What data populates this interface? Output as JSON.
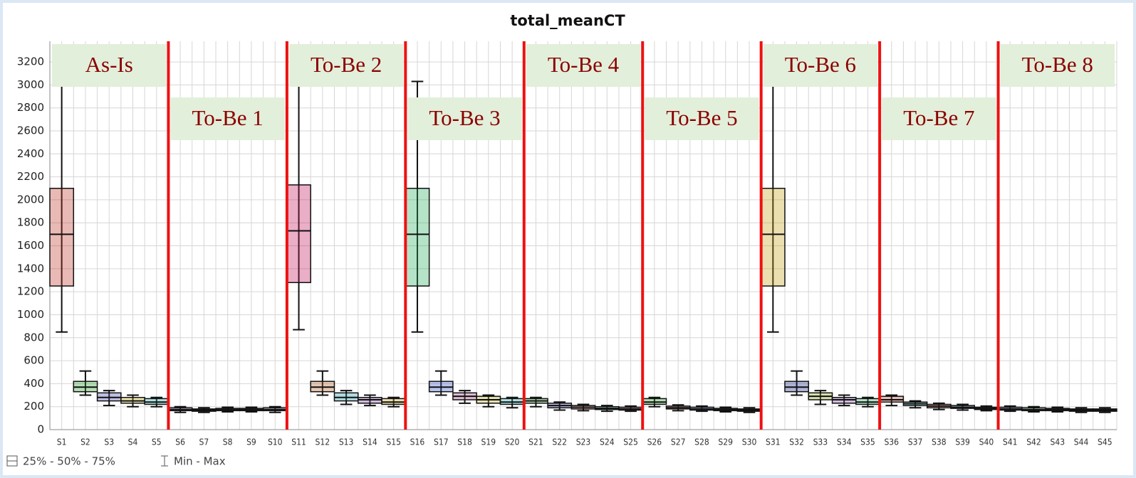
{
  "chart_data": {
    "type": "box",
    "title": "total_meanCT",
    "categories": [
      "S1",
      "S2",
      "S3",
      "S4",
      "S5",
      "S6",
      "S7",
      "S8",
      "S9",
      "S10",
      "S11",
      "S12",
      "S13",
      "S14",
      "S15",
      "S16",
      "S17",
      "S18",
      "S19",
      "S20",
      "S21",
      "S22",
      "S23",
      "S24",
      "S25",
      "S26",
      "S27",
      "S28",
      "S29",
      "S30",
      "S31",
      "S32",
      "S33",
      "S34",
      "S35",
      "S36",
      "S37",
      "S38",
      "S39",
      "S40",
      "S41",
      "S42",
      "S43",
      "S44",
      "S45"
    ],
    "colors": [
      "#c0392b",
      "#2ca02c",
      "#4b4bb5",
      "#c9b21a",
      "#1fa8a8",
      "#8e44ad",
      "#e67e22",
      "#3a7bd5",
      "#27ae60",
      "#9b59b6",
      "#c2185b",
      "#b5652b",
      "#1f9aa8",
      "#7b3fa0",
      "#c9a21a",
      "#27ae60",
      "#3a55c9",
      "#a0407a",
      "#b5a51a",
      "#1fa8a8",
      "#2ca02c",
      "#4b4bb5",
      "#c0392b",
      "#1fa8a8",
      "#c2185b",
      "#2ca02c",
      "#c0392b",
      "#3a7bd5",
      "#c0392b",
      "#3a55c9",
      "#c9a21a",
      "#1f2a8a",
      "#8aa51a",
      "#7b3fa0",
      "#27ae60",
      "#b5392b",
      "#1fa8a8",
      "#c0392b",
      "#3a7bd5",
      "#e67e22",
      "#3a55c9",
      "#2ca02c",
      "#7b3fa0",
      "#27ae60",
      "#c2185b"
    ],
    "boxes": [
      {
        "min": 850,
        "q1": 1250,
        "median": 1700,
        "q3": 2100,
        "max": 3000
      },
      {
        "min": 300,
        "q1": 330,
        "median": 370,
        "q3": 420,
        "max": 510
      },
      {
        "min": 210,
        "q1": 250,
        "median": 280,
        "q3": 320,
        "max": 340
      },
      {
        "min": 200,
        "q1": 230,
        "median": 250,
        "q3": 280,
        "max": 300
      },
      {
        "min": 200,
        "q1": 220,
        "median": 240,
        "q3": 270,
        "max": 280
      },
      {
        "min": 150,
        "q1": 165,
        "median": 175,
        "q3": 190,
        "max": 200
      },
      {
        "min": 150,
        "q1": 160,
        "median": 170,
        "q3": 180,
        "max": 190
      },
      {
        "min": 155,
        "q1": 165,
        "median": 175,
        "q3": 185,
        "max": 195
      },
      {
        "min": 155,
        "q1": 165,
        "median": 175,
        "q3": 185,
        "max": 195
      },
      {
        "min": 150,
        "q1": 165,
        "median": 175,
        "q3": 190,
        "max": 200
      },
      {
        "min": 870,
        "q1": 1280,
        "median": 1730,
        "q3": 2130,
        "max": 3070
      },
      {
        "min": 300,
        "q1": 330,
        "median": 370,
        "q3": 420,
        "max": 510
      },
      {
        "min": 220,
        "q1": 250,
        "median": 280,
        "q3": 320,
        "max": 340
      },
      {
        "min": 210,
        "q1": 230,
        "median": 260,
        "q3": 280,
        "max": 300
      },
      {
        "min": 200,
        "q1": 220,
        "median": 240,
        "q3": 270,
        "max": 280
      },
      {
        "min": 850,
        "q1": 1250,
        "median": 1700,
        "q3": 2100,
        "max": 3030
      },
      {
        "min": 300,
        "q1": 330,
        "median": 370,
        "q3": 420,
        "max": 510
      },
      {
        "min": 230,
        "q1": 260,
        "median": 290,
        "q3": 320,
        "max": 340
      },
      {
        "min": 200,
        "q1": 230,
        "median": 260,
        "q3": 290,
        "max": 300
      },
      {
        "min": 190,
        "q1": 220,
        "median": 240,
        "q3": 270,
        "max": 280
      },
      {
        "min": 200,
        "q1": 230,
        "median": 250,
        "q3": 270,
        "max": 280
      },
      {
        "min": 170,
        "q1": 190,
        "median": 210,
        "q3": 230,
        "max": 240
      },
      {
        "min": 165,
        "q1": 180,
        "median": 195,
        "q3": 210,
        "max": 220
      },
      {
        "min": 160,
        "q1": 175,
        "median": 185,
        "q3": 200,
        "max": 210
      },
      {
        "min": 160,
        "q1": 170,
        "median": 180,
        "q3": 195,
        "max": 205
      },
      {
        "min": 200,
        "q1": 220,
        "median": 240,
        "q3": 270,
        "max": 280
      },
      {
        "min": 165,
        "q1": 180,
        "median": 190,
        "q3": 205,
        "max": 215
      },
      {
        "min": 160,
        "q1": 170,
        "median": 180,
        "q3": 195,
        "max": 205
      },
      {
        "min": 155,
        "q1": 165,
        "median": 175,
        "q3": 185,
        "max": 195
      },
      {
        "min": 150,
        "q1": 160,
        "median": 170,
        "q3": 180,
        "max": 190
      },
      {
        "min": 850,
        "q1": 1250,
        "median": 1700,
        "q3": 2100,
        "max": 3030
      },
      {
        "min": 300,
        "q1": 330,
        "median": 370,
        "q3": 420,
        "max": 510
      },
      {
        "min": 220,
        "q1": 260,
        "median": 290,
        "q3": 320,
        "max": 340
      },
      {
        "min": 210,
        "q1": 230,
        "median": 260,
        "q3": 280,
        "max": 300
      },
      {
        "min": 200,
        "q1": 220,
        "median": 240,
        "q3": 270,
        "max": 280
      },
      {
        "min": 210,
        "q1": 240,
        "median": 260,
        "q3": 290,
        "max": 300
      },
      {
        "min": 190,
        "q1": 210,
        "median": 225,
        "q3": 240,
        "max": 250
      },
      {
        "min": 175,
        "q1": 190,
        "median": 205,
        "q3": 220,
        "max": 230
      },
      {
        "min": 170,
        "q1": 185,
        "median": 195,
        "q3": 210,
        "max": 220
      },
      {
        "min": 165,
        "q1": 175,
        "median": 185,
        "q3": 195,
        "max": 205
      },
      {
        "min": 160,
        "q1": 170,
        "median": 180,
        "q3": 195,
        "max": 205
      },
      {
        "min": 155,
        "q1": 165,
        "median": 175,
        "q3": 190,
        "max": 200
      },
      {
        "min": 155,
        "q1": 165,
        "median": 175,
        "q3": 185,
        "max": 195
      },
      {
        "min": 150,
        "q1": 160,
        "median": 170,
        "q3": 180,
        "max": 190
      },
      {
        "min": 150,
        "q1": 160,
        "median": 170,
        "q3": 180,
        "max": 190
      }
    ],
    "groups": [
      "As-Is",
      "To-Be 1",
      "To-Be 2",
      "To-Be 3",
      "To-Be 4",
      "To-Be 5",
      "To-Be 6",
      "To-Be 7",
      "To-Be 8"
    ],
    "ylim": [
      0,
      3380
    ],
    "yticks": [
      0,
      200,
      400,
      600,
      800,
      1000,
      1200,
      1400,
      1600,
      1800,
      2000,
      2200,
      2400,
      2600,
      2800,
      3000,
      3200
    ],
    "grid": true,
    "legend": [
      "25% - 50% - 75%",
      "Min - Max"
    ]
  }
}
